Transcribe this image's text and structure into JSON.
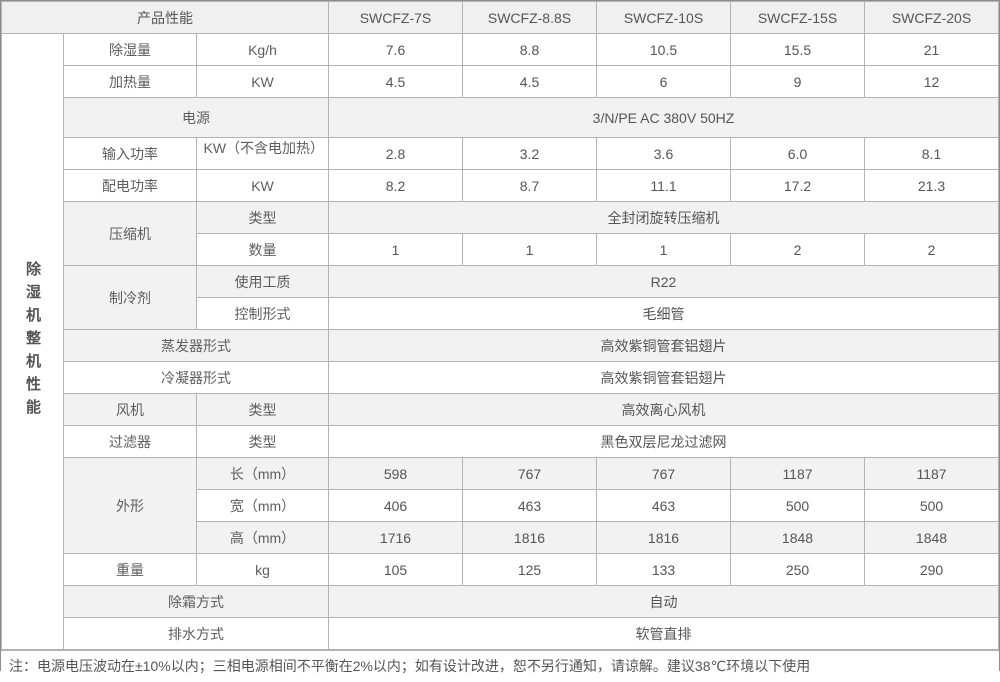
{
  "header": {
    "corner_label": "产品性能",
    "models": [
      "SWCFZ-7S",
      "SWCFZ-8.8S",
      "SWCFZ-10S",
      "SWCFZ-15S",
      "SWCFZ-20S"
    ]
  },
  "side_label": "除湿机整机性能",
  "rows": [
    {
      "label": "除湿量",
      "unit": "Kg/h",
      "values": [
        "7.6",
        "8.8",
        "10.5",
        "15.5",
        "21"
      ],
      "shaded": false
    },
    {
      "label": "加热量",
      "unit": "KW",
      "values": [
        "4.5",
        "4.5",
        "6",
        "9",
        "12"
      ],
      "shaded": false
    },
    {
      "label": "电源",
      "wide": true,
      "merged": "3/N/PE AC 380V 50HZ",
      "shaded": true,
      "tall": true
    },
    {
      "label": "输入功率",
      "unit": "KW（不含电加热）",
      "unit_clipped": true,
      "values": [
        "2.8",
        "3.2",
        "3.6",
        "6.0",
        "8.1"
      ],
      "shaded": false
    },
    {
      "label": "配电功率",
      "unit": "KW",
      "values": [
        "8.2",
        "8.7",
        "11.1",
        "17.2",
        "21.3"
      ],
      "shaded": false
    },
    {
      "label": "压缩机",
      "label_rowspan": 2,
      "unit": "类型",
      "merged": "全封闭旋转压缩机",
      "shaded": true
    },
    {
      "unit": "数量",
      "values": [
        "1",
        "1",
        "1",
        "2",
        "2"
      ],
      "shaded": false
    },
    {
      "label": "制冷剂",
      "label_rowspan": 2,
      "unit": "使用工质",
      "merged": "R22",
      "shaded": true
    },
    {
      "unit": "控制形式",
      "merged": "毛细管",
      "shaded": false
    },
    {
      "label": "蒸发器形式",
      "wide": true,
      "merged": "高效紫铜管套铝翅片",
      "shaded": true
    },
    {
      "label": "冷凝器形式",
      "wide": true,
      "merged": "高效紫铜管套铝翅片",
      "shaded": false
    },
    {
      "label": "风机",
      "unit": "类型",
      "merged": "高效离心风机",
      "shaded": true
    },
    {
      "label": "过滤器",
      "unit": "类型",
      "merged": "黑色双层尼龙过滤网",
      "shaded": false
    },
    {
      "label": "外形",
      "label_rowspan": 3,
      "unit": "长（mm）",
      "values": [
        "598",
        "767",
        "767",
        "1187",
        "1187"
      ],
      "shaded": true
    },
    {
      "unit": "宽（mm）",
      "values": [
        "406",
        "463",
        "463",
        "500",
        "500"
      ],
      "shaded": false
    },
    {
      "unit": "高（mm）",
      "values": [
        "1716",
        "1816",
        "1816",
        "1848",
        "1848"
      ],
      "shaded": true
    },
    {
      "label": "重量",
      "unit": "kg",
      "values": [
        "105",
        "125",
        "133",
        "250",
        "290"
      ],
      "shaded": false
    },
    {
      "label": "除霜方式",
      "wide": true,
      "merged": "自动",
      "shaded": true
    },
    {
      "label": "排水方式",
      "wide": true,
      "merged": "软管直排",
      "shaded": false
    }
  ],
  "footer_note": "注：电源电压波动在±10%以内；三相电源相间不平衡在2%以内；如有设计改进，恕不另行通知，请谅解。建议38℃环境以下使用",
  "colors": {
    "shaded_row": "#f2f2f2",
    "header_row": "#f0f0f0",
    "border": "#b3b3b3",
    "outer_border": "#8d8d8d",
    "text": "#555555",
    "background": "#ffffff"
  }
}
